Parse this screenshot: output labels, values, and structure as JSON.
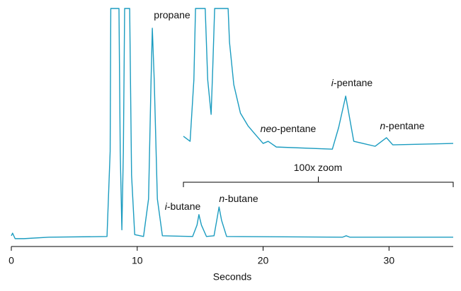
{
  "chart_data": {
    "type": "line",
    "x_label": "Seconds",
    "xlim": [
      0,
      35.1
    ],
    "xticks": [
      0,
      10,
      20,
      30
    ],
    "ylim": [
      0,
      100
    ],
    "grid": false,
    "series": [
      {
        "color": "#1b9cc0",
        "x": [
          0,
          0.1,
          0.3,
          1,
          3,
          7.6,
          7.85,
          7.9,
          8.55,
          8.65,
          8.78,
          8.9,
          9.0,
          9.4,
          9.55,
          9.8,
          10.5,
          10.9,
          11.1,
          11.2,
          11.35,
          11.6,
          12.0,
          14.4,
          14.75,
          14.9,
          15.1,
          15.5,
          16.1,
          16.35,
          16.5,
          16.7,
          17.1,
          26.3,
          26.6,
          26.9,
          35.1
        ],
        "values": [
          4.5,
          5.6,
          3.3,
          3.3,
          3.9,
          4.2,
          40,
          100,
          100,
          40,
          7,
          40,
          100,
          100,
          30,
          5,
          4.2,
          20,
          70,
          91.7,
          70,
          20,
          4.5,
          4.2,
          9,
          13.4,
          9,
          4.2,
          4.5,
          12,
          16.6,
          11,
          4.2,
          3.9,
          4.5,
          3.9,
          3.9
        ]
      },
      {
        "color": "#1b9cc0",
        "x": [
          13.67,
          14.2,
          14.5,
          14.63,
          15.4,
          15.6,
          15.87,
          16.0,
          16.15,
          17.22,
          17.33,
          17.67,
          18.2,
          18.8,
          19.36,
          20.0,
          20.4,
          21.05,
          25.5,
          26.0,
          26.56,
          27.2,
          28.9,
          29.8,
          30.3,
          35.1
        ],
        "values": [
          46.3,
          44.2,
          70,
          100,
          100,
          70,
          55.5,
          75,
          100,
          100,
          85.8,
          68,
          56,
          50.7,
          47.2,
          43.3,
          44.2,
          41.8,
          40.9,
          50,
          63.2,
          44.2,
          42.1,
          45.7,
          42.7,
          43.3
        ]
      }
    ],
    "zoom_range": [
      13.67,
      35.1
    ],
    "annotations": [
      {
        "text": "propane"
      },
      {
        "italic": "i",
        "text": "-butane"
      },
      {
        "italic": "n",
        "text": "-butane"
      },
      {
        "italic": "neo",
        "text": "-pentane"
      },
      {
        "italic": "i",
        "text": "-pentane"
      },
      {
        "italic": "n",
        "text": "-pentane"
      },
      {
        "text": "100x zoom"
      }
    ]
  }
}
